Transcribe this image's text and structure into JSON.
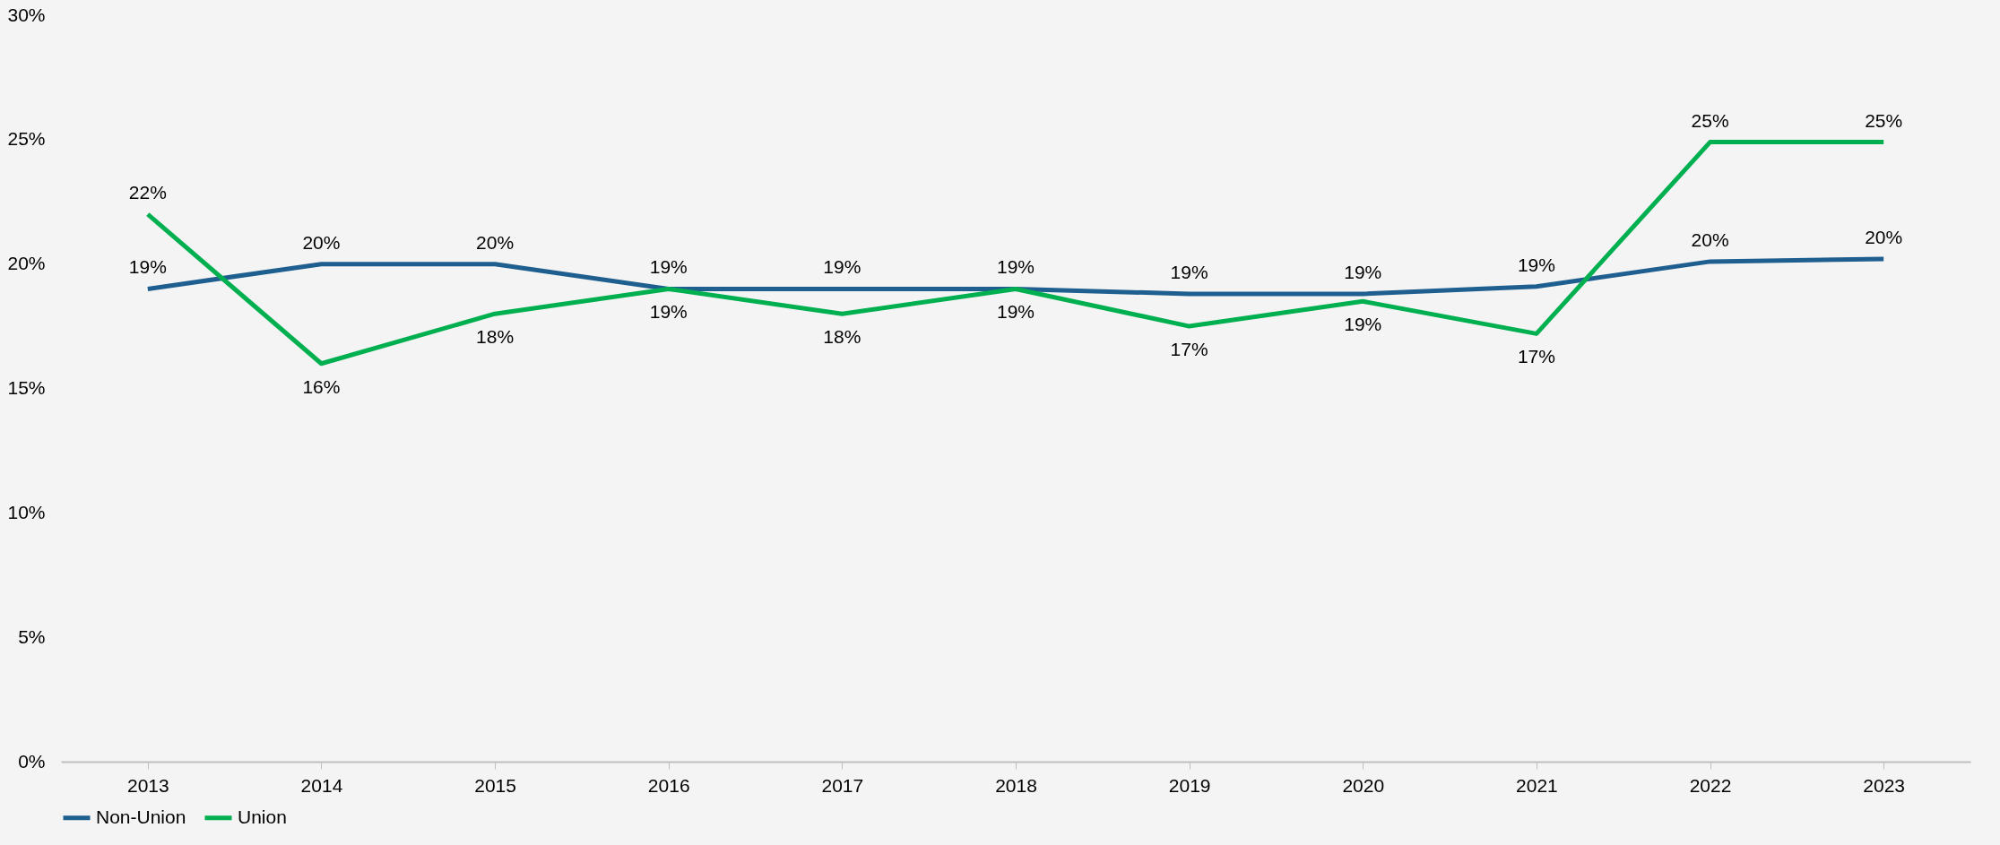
{
  "chart_data": {
    "type": "line",
    "categories": [
      "2013",
      "2014",
      "2015",
      "2016",
      "2017",
      "2018",
      "2019",
      "2020",
      "2021",
      "2022",
      "2023"
    ],
    "series": [
      {
        "name": "Non-Union",
        "color": "#1f5f8f",
        "values": [
          19.0,
          20.0,
          20.0,
          19.0,
          19.0,
          19.0,
          18.8,
          18.8,
          19.1,
          20.1,
          20.2
        ],
        "value_labels": [
          "19%",
          "20%",
          "20%",
          "19%",
          "19%",
          "19%",
          "19%",
          "19%",
          "19%",
          "20%",
          "20%"
        ]
      },
      {
        "name": "Union",
        "color": "#00b050",
        "values": [
          22.0,
          16.0,
          18.0,
          19.0,
          18.0,
          19.0,
          17.5,
          18.5,
          17.2,
          24.9,
          24.9
        ],
        "value_labels": [
          "22%",
          "16%",
          "18%",
          "19%",
          "18%",
          "19%",
          "17%",
          "19%",
          "17%",
          "25%",
          "25%"
        ]
      }
    ],
    "ylim": [
      0,
      30
    ],
    "yticks": [
      {
        "value": 0,
        "label": "0%"
      },
      {
        "value": 5,
        "label": "5%"
      },
      {
        "value": 10,
        "label": "10%"
      },
      {
        "value": 15,
        "label": "15%"
      },
      {
        "value": 20,
        "label": "20%"
      },
      {
        "value": 25,
        "label": "25%"
      },
      {
        "value": 30,
        "label": "30%"
      }
    ],
    "grid": false,
    "legend": "bottom"
  }
}
